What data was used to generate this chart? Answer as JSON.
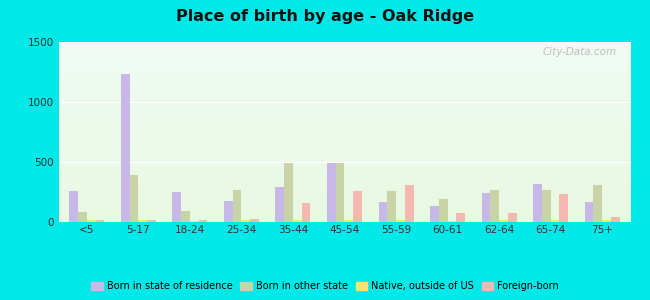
{
  "title": "Place of birth by age - Oak Ridge",
  "categories": [
    "<5",
    "5-17",
    "18-24",
    "25-34",
    "35-44",
    "45-54",
    "55-59",
    "60-61",
    "62-64",
    "65-74",
    "75+"
  ],
  "series": {
    "Born in state of residence": [
      260,
      1230,
      250,
      175,
      290,
      495,
      165,
      130,
      245,
      320,
      165
    ],
    "Born in other state": [
      80,
      390,
      95,
      265,
      490,
      490,
      260,
      190,
      265,
      270,
      310
    ],
    "Native, outside of US": [
      15,
      20,
      10,
      15,
      20,
      20,
      15,
      10,
      15,
      15,
      15
    ],
    "Foreign-born": [
      20,
      20,
      15,
      25,
      160,
      255,
      310,
      75,
      75,
      230,
      40
    ]
  },
  "colors": {
    "Born in state of residence": "#c8b8e8",
    "Born in other state": "#c8d4a8",
    "Native, outside of US": "#f0e868",
    "Foreign-born": "#f4b8b0"
  },
  "ylim": [
    0,
    1500
  ],
  "yticks": [
    0,
    500,
    1000,
    1500
  ],
  "fig_bg": "#00e8e8",
  "plot_bg_top": "#f0faf4",
  "plot_bg_bottom": "#e8f8e0",
  "watermark": "City-Data.com",
  "legend_labels": [
    "Born in state of residence",
    "Born in other state",
    "Native, outside of US",
    "Foreign-born"
  ],
  "bar_width": 0.17,
  "offsets": [
    -1.5,
    -0.5,
    0.5,
    1.5
  ]
}
